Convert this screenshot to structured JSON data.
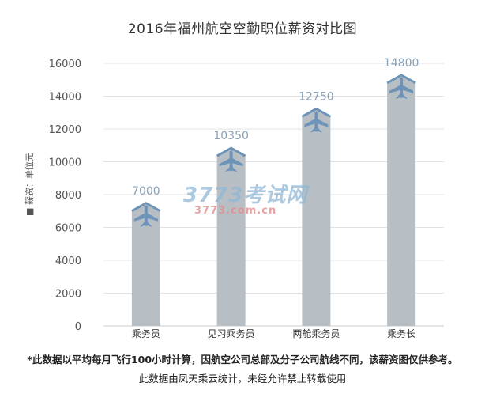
{
  "chart_data": {
    "type": "bar",
    "title": "2016年福州航空空勤职位薪资对比图",
    "ylabel": "■ 薪资：单位元",
    "xlabel": "",
    "categories": [
      "乘务员",
      "见习乘务员",
      "两舱乘务员",
      "乘务长"
    ],
    "values": [
      7000,
      10350,
      12750,
      14800
    ],
    "data_labels": [
      "7000",
      "10350",
      "12750",
      "14800"
    ],
    "ylim": [
      0,
      16000
    ],
    "yticks": [
      0,
      2000,
      4000,
      6000,
      8000,
      10000,
      12000,
      14000,
      16000
    ],
    "ytick_labels": [
      "0",
      "2000",
      "4000",
      "6000",
      "8000",
      "10000",
      "12000",
      "14000",
      "16000"
    ],
    "grid": true,
    "bar_color": "#b7bfc5",
    "bar_top_color": "#6e93b8",
    "marker_icon": "airplane-icon"
  },
  "watermark": {
    "main": "3773考试网",
    "sub": "3773.com.cn"
  },
  "footnotes": [
    "*此数据以平均每月飞行100小时计算，因航空公司总部及分子公司航线不同，该薪资图仅供参考。",
    "此数据由凤天乘云统计，未经允许禁止转载使用"
  ]
}
